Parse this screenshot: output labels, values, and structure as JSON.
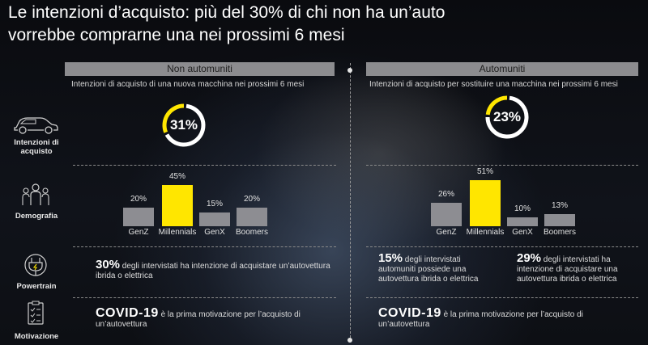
{
  "title_line1": "Le intenzioni d’acquisto: più del 30% di chi non ha un’auto",
  "title_line2": "vorrebbe comprarne una nei prossimi 6 mesi",
  "rows": {
    "intenzioni": "Intenzioni di acquisto",
    "demografia": "Demografia",
    "powertrain": "Powertrain",
    "motivazione": "Motivazione"
  },
  "left": {
    "header": "Non automuniti",
    "subtitle": "Intenzioni di acquisto di una nuova macchina nei prossimi 6 mesi",
    "donut_label": "31%",
    "powertrain_big": "30%",
    "powertrain_text": " degli intervistati ha intenzione di acquistare un’autovettura ibrida o elettrica",
    "motivazione_big": "COVID-19",
    "motivazione_text": " è la prima motivazione per l’acquisto di un’autovettura"
  },
  "right": {
    "header": "Automuniti",
    "subtitle": "Intenzioni di acquisto per sostituire una macchina nei prossimi 6 mesi",
    "donut_label": "23%",
    "powertrain1_big": "15%",
    "powertrain1_text": " degli intervistati automuniti possiede una autovettura ibrida o elettrica",
    "powertrain2_big": "29%",
    "powertrain2_text": " degli intervistati ha intenzione di acquistare una autovettura ibrida o elettrica",
    "motivazione_big": "COVID-19",
    "motivazione_text": " è la prima motivazione per l’acquisto di un’autovettura"
  },
  "colors": {
    "accent": "#ffe600",
    "gray_bar": "#8d8d92",
    "track": "#ffffff"
  },
  "chart_data": [
    {
      "type": "pie",
      "values": [
        31,
        69
      ]
    },
    {
      "type": "bar",
      "categories": [
        "GenZ",
        "Millennials",
        "GenX",
        "Boomers"
      ],
      "values": [
        20,
        45,
        15,
        20
      ],
      "value_labels": [
        "20%",
        "45%",
        "15%",
        "20%"
      ],
      "highlight": "Millennials"
    },
    {
      "type": "pie",
      "values": [
        23,
        77
      ]
    },
    {
      "type": "bar",
      "categories": [
        "GenZ",
        "Millennials",
        "GenX",
        "Boomers"
      ],
      "values": [
        26,
        51,
        10,
        13
      ],
      "value_labels": [
        "26%",
        "51%",
        "10%",
        "13%"
      ],
      "highlight": "Millennials"
    }
  ]
}
